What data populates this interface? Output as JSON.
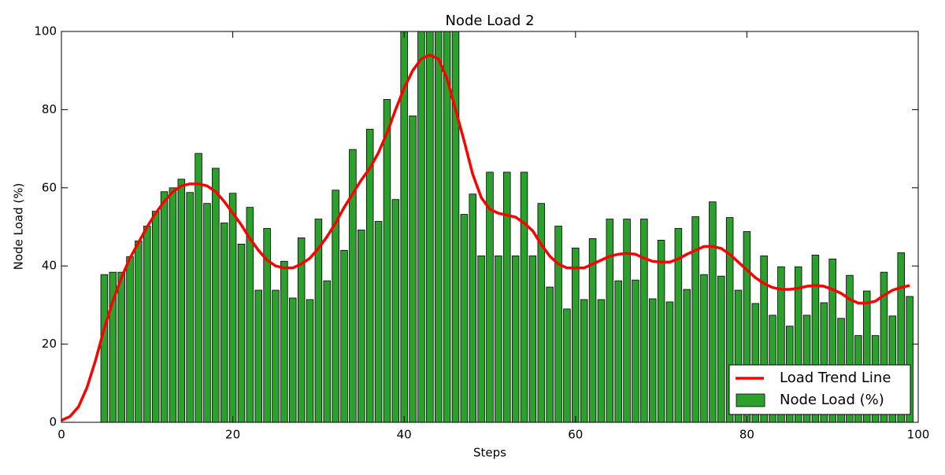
{
  "chart_data": {
    "type": "bar",
    "title": "Node Load 2",
    "xlabel": "Steps",
    "ylabel": "Node Load (%)",
    "x": [
      0,
      1,
      2,
      3,
      4,
      5,
      6,
      7,
      8,
      9,
      10,
      11,
      12,
      13,
      14,
      15,
      16,
      17,
      18,
      19,
      20,
      21,
      22,
      23,
      24,
      25,
      26,
      27,
      28,
      29,
      30,
      31,
      32,
      33,
      34,
      35,
      36,
      37,
      38,
      39,
      40,
      41,
      42,
      43,
      44,
      45,
      46,
      47,
      48,
      49,
      50,
      51,
      52,
      53,
      54,
      55,
      56,
      57,
      58,
      59,
      60,
      61,
      62,
      63,
      64,
      65,
      66,
      67,
      68,
      69,
      70,
      71,
      72,
      73,
      74,
      75,
      76,
      77,
      78,
      79,
      80,
      81,
      82,
      83,
      84,
      85,
      86,
      87,
      88,
      89,
      90,
      91,
      92,
      93,
      94,
      95,
      96,
      97,
      98,
      99
    ],
    "series": [
      {
        "name": "Load Trend Line",
        "type": "line",
        "color": "#ff0000",
        "values": [
          0.5,
          1.5,
          4,
          9,
          16,
          24,
          31,
          37,
          42,
          46,
          50,
          53.5,
          56.5,
          59,
          60.5,
          61,
          61,
          60.5,
          59,
          56.5,
          53.5,
          50.5,
          47,
          44,
          41.5,
          40,
          39.5,
          39.5,
          40.5,
          42,
          44.5,
          47.5,
          51,
          55,
          58.5,
          62,
          65,
          69,
          74,
          80,
          85.5,
          90,
          93,
          94,
          93,
          88,
          80,
          72,
          63.5,
          57.5,
          54.5,
          53.5,
          53,
          52.5,
          51,
          49,
          45.5,
          42.5,
          40.5,
          39.5,
          39.5,
          39.5,
          40.5,
          41.5,
          42.5,
          43,
          43.2,
          43,
          42,
          41.2,
          41,
          41,
          41.8,
          43,
          44,
          45,
          45,
          44.5,
          43,
          41,
          39,
          37,
          35.5,
          34.5,
          34,
          34,
          34.3,
          34.8,
          35,
          34.8,
          34,
          33,
          31.5,
          30.5,
          30.5,
          31,
          32.5,
          33.8,
          34.5,
          35
        ]
      },
      {
        "name": "Node Load (%)",
        "type": "bar",
        "color": "#2ca02c",
        "values": [
          0,
          0,
          0,
          0,
          0,
          37.8,
          38.4,
          38.4,
          42.4,
          46.4,
          50.2,
          54,
          59,
          60,
          62.2,
          58.8,
          68.8,
          56,
          65,
          51,
          58.6,
          45.6,
          55,
          33.8,
          49.6,
          33.8,
          41.2,
          31.8,
          47.2,
          31.4,
          52,
          36.2,
          59.4,
          44,
          69.8,
          49.2,
          75,
          51.4,
          82.6,
          57,
          100,
          78.4,
          100,
          100,
          100,
          100,
          100,
          53.2,
          58.4,
          42.6,
          64,
          42.6,
          64,
          42.6,
          64,
          42.6,
          56,
          34.6,
          50.2,
          29,
          44.6,
          31.4,
          47,
          31.4,
          52,
          36.2,
          52,
          36.4,
          52,
          31.6,
          46.6,
          30.8,
          49.6,
          34,
          52.6,
          37.8,
          56.4,
          37.4,
          52.4,
          33.8,
          48.8,
          30.4,
          42.6,
          27.4,
          39.8,
          24.6,
          39.8,
          27.4,
          42.8,
          30.6,
          41.8,
          26.6,
          37.6,
          22.2,
          33.6,
          22.2,
          38.4,
          27.2,
          43.4,
          32.2
        ]
      }
    ],
    "xlim": [
      0,
      100
    ],
    "xticks": [
      0,
      20,
      40,
      60,
      80,
      100
    ],
    "ylim": [
      0,
      100
    ],
    "yticks": [
      0,
      20,
      40,
      60,
      80,
      100
    ],
    "legend": "lower right"
  }
}
